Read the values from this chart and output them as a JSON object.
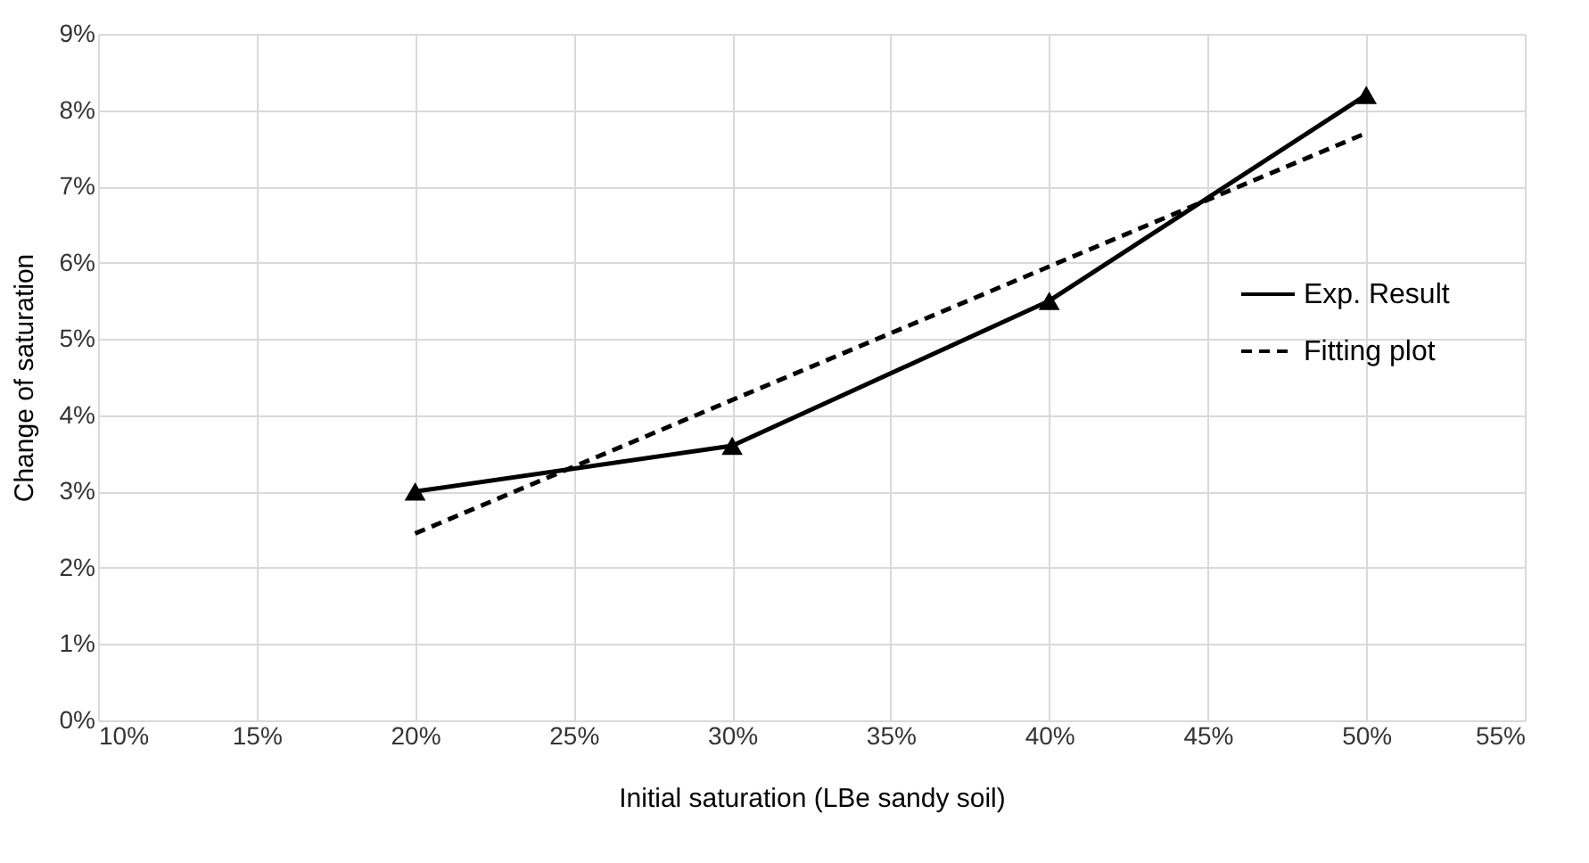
{
  "chart_data": {
    "type": "line",
    "xlabel": "Initial saturation (LBe sandy soil)",
    "ylabel": "Change of saturation",
    "xlim": [
      10,
      55
    ],
    "xticks": [
      {
        "value": 10,
        "label": "10%"
      },
      {
        "value": 15,
        "label": "15%"
      },
      {
        "value": 20,
        "label": "20%"
      },
      {
        "value": 25,
        "label": "25%"
      },
      {
        "value": 30,
        "label": "30%"
      },
      {
        "value": 35,
        "label": "35%"
      },
      {
        "value": 40,
        "label": "40%"
      },
      {
        "value": 45,
        "label": "45%"
      },
      {
        "value": 50,
        "label": "50%"
      },
      {
        "value": 55,
        "label": "55%"
      }
    ],
    "ylim": [
      0,
      9
    ],
    "yticks": [
      {
        "value": 0,
        "label": "0%"
      },
      {
        "value": 1,
        "label": "1%"
      },
      {
        "value": 2,
        "label": "2%"
      },
      {
        "value": 3,
        "label": "3%"
      },
      {
        "value": 4,
        "label": "4%"
      },
      {
        "value": 5,
        "label": "5%"
      },
      {
        "value": 6,
        "label": "6%"
      },
      {
        "value": 7,
        "label": "7%"
      },
      {
        "value": 8,
        "label": "8%"
      },
      {
        "value": 9,
        "label": "9%"
      }
    ],
    "grid": true,
    "legend": "right",
    "series": [
      {
        "name": "Exp. Result",
        "color": "#000000",
        "x": [
          20,
          30,
          40,
          50
        ],
        "values": [
          3.0,
          3.6,
          5.5,
          8.2
        ],
        "marker": "triangle",
        "line_style": "solid"
      },
      {
        "name": "Fitting plot",
        "color": "#000000",
        "x": [
          20,
          50
        ],
        "values": [
          2.45,
          7.7
        ],
        "marker": "none",
        "line_style": "dashed"
      }
    ]
  }
}
